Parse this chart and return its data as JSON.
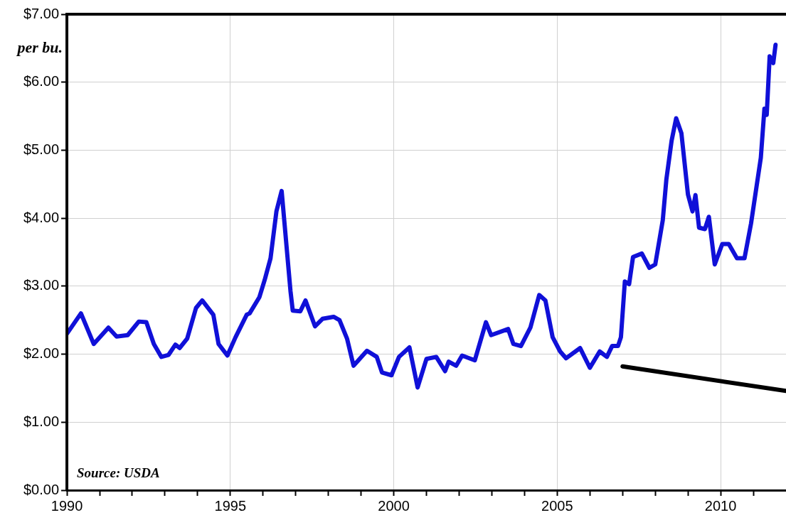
{
  "chart_data": {
    "type": "line",
    "ylabel": "per bu.",
    "annotations": [
      "Source: USDA"
    ],
    "x": [
      1990.0,
      1990.43,
      1990.82,
      1991.27,
      1991.52,
      1991.86,
      1992.2,
      1992.43,
      1992.66,
      1992.89,
      1993.11,
      1993.32,
      1993.45,
      1993.68,
      1993.95,
      1994.14,
      1994.48,
      1994.64,
      1994.91,
      1995.16,
      1995.5,
      1995.59,
      1995.89,
      1996.05,
      1996.23,
      1996.41,
      1996.57,
      1996.84,
      1996.91,
      1997.14,
      1997.3,
      1997.59,
      1997.82,
      1998.16,
      1998.34,
      1998.57,
      1998.77,
      1999.18,
      1999.48,
      1999.64,
      1999.93,
      2000.16,
      2000.48,
      2000.73,
      2001.0,
      2001.3,
      2001.57,
      2001.68,
      2001.91,
      2002.09,
      2002.48,
      2002.82,
      2002.98,
      2003.5,
      2003.66,
      2003.89,
      2004.18,
      2004.45,
      2004.64,
      2004.86,
      2005.09,
      2005.27,
      2005.7,
      2006.0,
      2006.3,
      2006.52,
      2006.68,
      2006.86,
      2006.95,
      2007.07,
      2007.2,
      2007.32,
      2007.59,
      2007.82,
      2008.0,
      2008.23,
      2008.34,
      2008.5,
      2008.64,
      2008.8,
      2009.0,
      2009.14,
      2009.23,
      2009.34,
      2009.52,
      2009.64,
      2009.82,
      2010.05,
      2010.25,
      2010.5,
      2010.73,
      2010.93,
      2011.23,
      2011.34,
      2011.41,
      2011.5,
      2011.61,
      2011.68
    ],
    "series": [
      {
        "color": "#1010d8",
        "values": [
          2.3,
          2.6,
          2.15,
          2.39,
          2.26,
          2.28,
          2.48,
          2.47,
          2.15,
          1.96,
          1.99,
          2.14,
          2.09,
          2.23,
          2.68,
          2.79,
          2.58,
          2.15,
          1.98,
          2.25,
          2.58,
          2.6,
          2.84,
          3.09,
          3.41,
          4.1,
          4.4,
          2.93,
          2.64,
          2.63,
          2.79,
          2.41,
          2.52,
          2.55,
          2.5,
          2.23,
          1.83,
          2.05,
          1.96,
          1.73,
          1.69,
          1.96,
          2.1,
          1.51,
          1.93,
          1.96,
          1.75,
          1.89,
          1.83,
          1.98,
          1.91,
          2.47,
          2.28,
          2.37,
          2.15,
          2.12,
          2.39,
          2.87,
          2.79,
          2.25,
          2.04,
          1.94,
          2.09,
          1.8,
          2.04,
          1.96,
          2.12,
          2.12,
          2.25,
          3.07,
          3.03,
          3.43,
          3.48,
          3.27,
          3.32,
          3.97,
          4.57,
          5.14,
          5.47,
          5.25,
          4.35,
          4.1,
          4.34,
          3.86,
          3.84,
          4.02,
          3.32,
          3.62,
          3.62,
          3.41,
          3.41,
          3.92,
          4.89,
          5.61,
          5.52,
          6.38,
          6.28,
          6.55
        ]
      },
      {
        "type": "line",
        "color": "#000000",
        "x": [
          2007.0,
          2012.0
        ],
        "values": [
          1.82,
          1.46
        ]
      }
    ],
    "xlim": [
      1990,
      2012
    ],
    "xticks": [
      1990,
      {
        "value": 1991,
        "label": null
      },
      {
        "value": 1992,
        "label": null
      },
      {
        "value": 1993,
        "label": null
      },
      {
        "value": 1994,
        "label": null
      },
      1995,
      {
        "value": 1996,
        "label": null
      },
      {
        "value": 1997,
        "label": null
      },
      {
        "value": 1998,
        "label": null
      },
      {
        "value": 1999,
        "label": null
      },
      2000,
      {
        "value": 2001,
        "label": null
      },
      {
        "value": 2002,
        "label": null
      },
      {
        "value": 2003,
        "label": null
      },
      {
        "value": 2004,
        "label": null
      },
      2005,
      {
        "value": 2006,
        "label": null
      },
      {
        "value": 2007,
        "label": null
      },
      {
        "value": 2008,
        "label": null
      },
      {
        "value": 2009,
        "label": null
      },
      2010,
      {
        "value": 2011,
        "label": null
      }
    ],
    "ylim": [
      0,
      7
    ],
    "yticks": [
      {
        "value": 0,
        "label": "$0.00"
      },
      {
        "value": 1,
        "label": "$1.00"
      },
      {
        "value": 2,
        "label": "$2.00"
      },
      {
        "value": 3,
        "label": "$3.00"
      },
      {
        "value": 4,
        "label": "$4.00"
      },
      {
        "value": 5,
        "label": "$5.00"
      },
      {
        "value": 6,
        "label": "$6.00"
      },
      {
        "value": 7,
        "label": "$7.00"
      }
    ],
    "grid": true,
    "legend": false,
    "marker": "none",
    "line_style": "solid"
  }
}
